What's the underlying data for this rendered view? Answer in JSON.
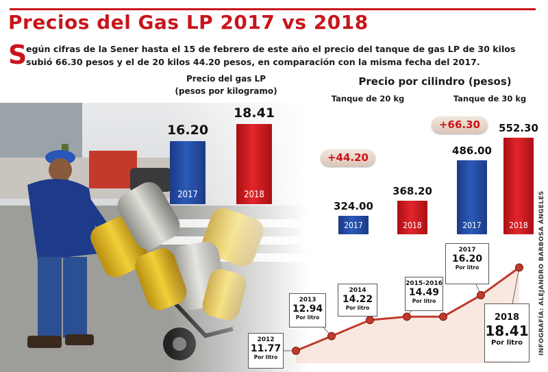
{
  "header": {
    "title": "Precios del Gas LP 2017 vs 2018",
    "intro_dropcap": "S",
    "intro_line1": "egún cifras de la Sener hasta el 15 de febrero de este año el precio del tanque de gas LP de 30 kilos",
    "intro_line2": "subió 66.30 pesos y el de 20 kilos 44.20 pesos, en comparación con la misma fecha del 2017."
  },
  "colors": {
    "title_red": "#c8151b",
    "bar_2017": "#1f4596",
    "bar_2018": "#d61f24",
    "line": "#c0392b"
  },
  "chart_data": [
    {
      "type": "bar",
      "title": "Precio del gas LP",
      "subtitle": "(pesos por kilogramo)",
      "categories": [
        "2017",
        "2018"
      ],
      "values": [
        16.2,
        18.41
      ],
      "value_labels": [
        "16.20",
        "18.41"
      ]
    },
    {
      "type": "bar",
      "title": "Precio por cilindro (pesos)",
      "groups": [
        {
          "name": "Tanque de 20 kg",
          "categories": [
            "2017",
            "2018"
          ],
          "values": [
            324.0,
            368.2
          ],
          "value_labels": [
            "324.00",
            "368.20"
          ],
          "increase": "+44.20"
        },
        {
          "name": "Tanque de 30 kg",
          "categories": [
            "2017",
            "2018"
          ],
          "values": [
            486.0,
            552.3
          ],
          "value_labels": [
            "486.00",
            "552.30"
          ],
          "increase": "+66.30"
        }
      ]
    },
    {
      "type": "line",
      "x": [
        "2012",
        "2013",
        "2014",
        "2015-2016",
        "2017",
        "2018"
      ],
      "y": [
        11.77,
        12.94,
        14.22,
        14.49,
        16.2,
        18.41
      ],
      "value_labels": [
        "11.77",
        "12.94",
        "14.22",
        "14.49",
        "16.20",
        "18.41"
      ],
      "unit_label": "Por litro"
    }
  ],
  "credit": "INFOGRAFÍA: ALEJANDRO BARBOSA ÁNGELES"
}
